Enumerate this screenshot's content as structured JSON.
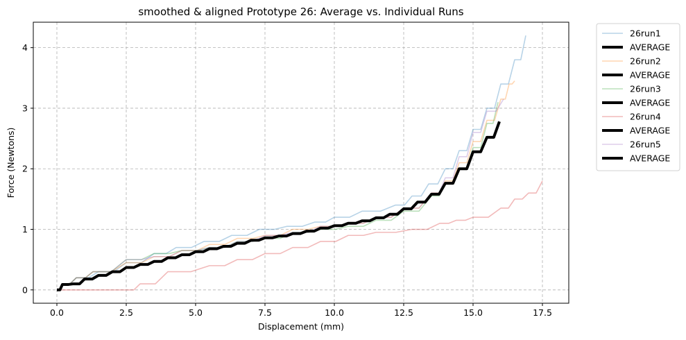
{
  "chart_data": {
    "type": "line",
    "title": "smoothed & aligned Prototype 26: Average vs. Individual Runs",
    "xlabel": "Displacement (mm)",
    "ylabel": "Force (Newtons)",
    "xlim": [
      -0.85,
      18.45
    ],
    "ylim": [
      -0.22,
      4.42
    ],
    "xticks": [
      "0.0",
      "2.5",
      "5.0",
      "7.5",
      "10.0",
      "12.5",
      "15.0",
      "17.5"
    ],
    "yticks": [
      "0",
      "1",
      "2",
      "3",
      "4"
    ],
    "grid": true,
    "legend_position": "outside-right",
    "series": [
      {
        "name": "26run1",
        "color": "#1f77b4",
        "x": [
          0,
          0.2,
          0.7,
          1.5,
          2.5,
          3.5,
          4.3,
          5.3,
          6.3,
          7.3,
          8.3,
          9.3,
          10.0,
          11.0,
          12.2,
          12.8,
          13.4,
          14.0,
          14.5,
          15.0,
          15.5,
          16.0,
          16.5,
          16.9
        ],
        "y": [
          0,
          0.1,
          0.2,
          0.3,
          0.45,
          0.6,
          0.7,
          0.8,
          0.9,
          1.0,
          1.05,
          1.12,
          1.2,
          1.3,
          1.4,
          1.55,
          1.75,
          2.0,
          2.3,
          2.65,
          3.0,
          3.4,
          3.8,
          4.2
        ]
      },
      {
        "name": "AVERAGE",
        "color": "#000000",
        "x": [],
        "y": []
      },
      {
        "name": "26run2",
        "color": "#ff7f0e",
        "x": [
          0,
          0.2,
          0.7,
          1.3,
          2.5,
          3.5,
          4.5,
          5.5,
          6.5,
          7.5,
          8.5,
          9.5,
          10.5,
          11.5,
          12.5,
          13.5,
          14.0,
          14.5,
          15.0,
          15.5,
          16.0,
          16.3,
          16.5
        ],
        "y": [
          0,
          0.1,
          0.2,
          0.3,
          0.45,
          0.55,
          0.65,
          0.75,
          0.85,
          0.9,
          1.0,
          1.05,
          1.1,
          1.2,
          1.35,
          1.6,
          1.8,
          2.1,
          2.45,
          2.8,
          3.15,
          3.4,
          3.45
        ]
      },
      {
        "name": "AVERAGE",
        "color": "#000000",
        "x": [],
        "y": []
      },
      {
        "name": "26run3",
        "color": "#2ca02c",
        "x": [
          0,
          0.2,
          0.7,
          1.3,
          2.5,
          3.5,
          4.5,
          5.5,
          6.5,
          7.5,
          8.5,
          9.5,
          10.5,
          11.5,
          12.5,
          13.5,
          14.0,
          14.5,
          15.0,
          15.5,
          15.9
        ],
        "y": [
          0,
          0.1,
          0.2,
          0.3,
          0.5,
          0.6,
          0.65,
          0.7,
          0.8,
          0.85,
          0.95,
          1.0,
          1.05,
          1.15,
          1.3,
          1.55,
          1.75,
          2.0,
          2.35,
          2.75,
          3.1
        ]
      },
      {
        "name": "AVERAGE",
        "color": "#000000",
        "x": [],
        "y": []
      },
      {
        "name": "26run4",
        "color": "#d62728",
        "x": [
          0,
          1.0,
          2.0,
          2.5,
          3.0,
          4.0,
          5.5,
          6.5,
          7.5,
          8.5,
          9.5,
          10.5,
          11.5,
          12.8,
          13.8,
          14.4,
          15.0,
          16.0,
          16.5,
          17.0,
          17.5
        ],
        "y": [
          0,
          0,
          0,
          0,
          0.1,
          0.3,
          0.4,
          0.5,
          0.6,
          0.7,
          0.8,
          0.9,
          0.95,
          1.0,
          1.1,
          1.15,
          1.2,
          1.35,
          1.5,
          1.6,
          1.8
        ]
      },
      {
        "name": "AVERAGE",
        "color": "#000000",
        "x": [],
        "y": []
      },
      {
        "name": "26run5",
        "color": "#9467bd",
        "x": [
          0,
          0.2,
          0.7,
          1.3,
          2.5,
          3.5,
          4.5,
          5.5,
          6.5,
          7.5,
          8.5,
          9.5,
          10.5,
          11.5,
          12.5,
          13.5,
          14.0,
          14.5,
          15.0,
          15.5,
          16.1
        ],
        "y": [
          0,
          0.1,
          0.2,
          0.3,
          0.5,
          0.55,
          0.65,
          0.7,
          0.8,
          0.9,
          0.95,
          1.05,
          1.1,
          1.2,
          1.35,
          1.6,
          1.85,
          2.2,
          2.6,
          2.95,
          3.15
        ]
      },
      {
        "name": "AVERAGE",
        "color": "#000000",
        "x": [
          0,
          0.2,
          0.6,
          1.0,
          1.5,
          2.0,
          2.5,
          3.0,
          3.5,
          4.0,
          4.5,
          5.0,
          5.5,
          6.0,
          6.5,
          7.0,
          7.5,
          8.0,
          8.5,
          9.0,
          9.5,
          10.0,
          10.5,
          11.0,
          11.5,
          12.0,
          12.5,
          13.0,
          13.5,
          14.0,
          14.5,
          15.0,
          15.5,
          15.95
        ],
        "y": [
          0,
          0.09,
          0.1,
          0.18,
          0.24,
          0.3,
          0.37,
          0.42,
          0.47,
          0.53,
          0.58,
          0.63,
          0.68,
          0.72,
          0.77,
          0.82,
          0.86,
          0.89,
          0.93,
          0.97,
          1.02,
          1.06,
          1.1,
          1.14,
          1.19,
          1.25,
          1.34,
          1.45,
          1.58,
          1.76,
          2.0,
          2.28,
          2.52,
          2.78
        ]
      }
    ]
  }
}
